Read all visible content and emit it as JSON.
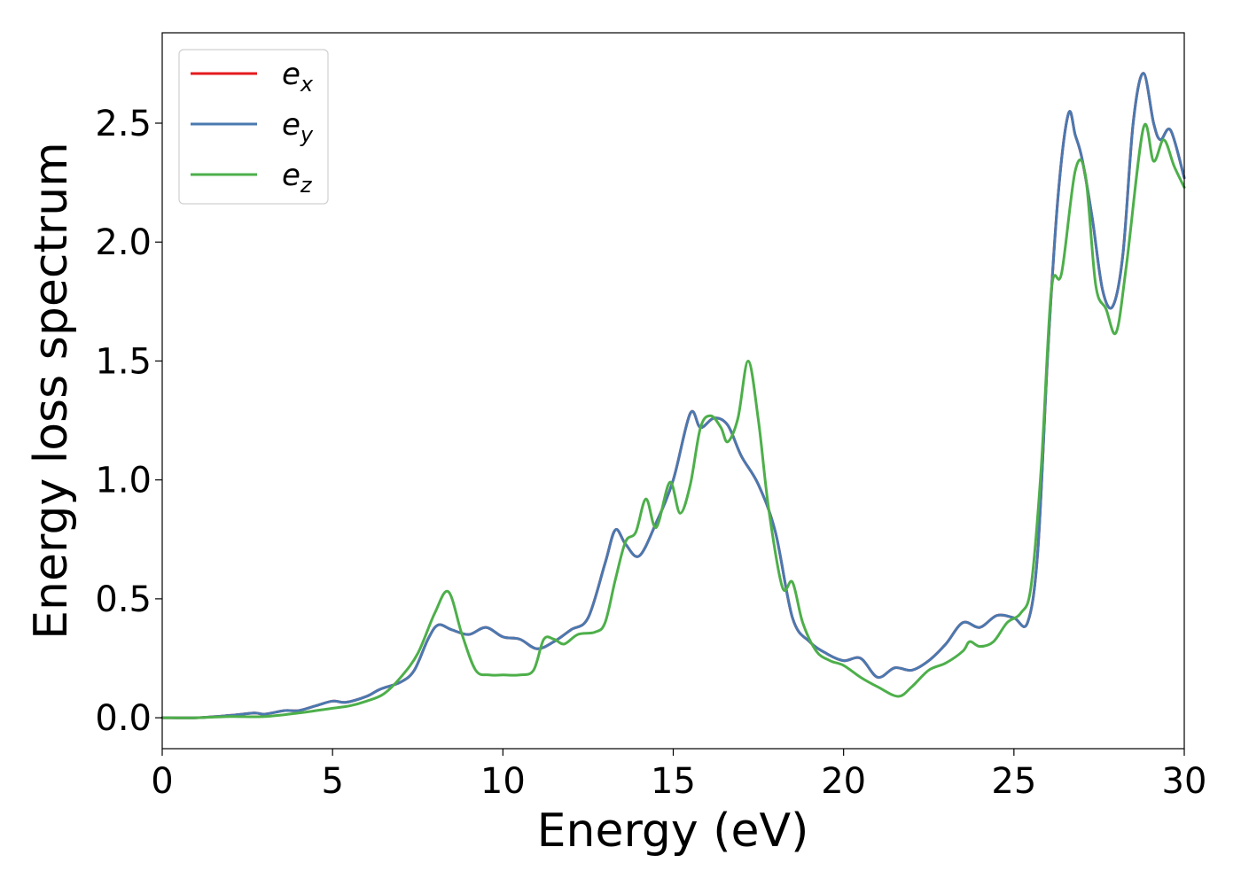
{
  "chart_data": {
    "type": "line",
    "title": "",
    "xlabel": "Energy (eV)",
    "ylabel": "Energy loss spectrum",
    "xlim": [
      0,
      30
    ],
    "ylim": [
      -0.13,
      2.88
    ],
    "xticks": [
      0,
      5,
      10,
      15,
      20,
      25,
      30
    ],
    "yticks": [
      0.0,
      0.5,
      1.0,
      1.5,
      2.0,
      2.5
    ],
    "xtick_labels": [
      "0",
      "5",
      "10",
      "15",
      "20",
      "25",
      "30"
    ],
    "ytick_labels": [
      "0.0",
      "0.5",
      "1.0",
      "1.5",
      "2.0",
      "2.5"
    ],
    "grid": false,
    "legend_position": "top-left",
    "series": [
      {
        "name": "e",
        "name_sub": "x",
        "color": "#e41a1c",
        "x": [
          0,
          1,
          2,
          2.7,
          3,
          3.6,
          4,
          4.5,
          5,
          5.4,
          6,
          6.4,
          7,
          7.4,
          7.8,
          8.1,
          8.5,
          9,
          9.5,
          10,
          10.5,
          11,
          11.5,
          12,
          12.5,
          13,
          13.3,
          13.6,
          14,
          14.5,
          15,
          15.5,
          15.8,
          16.2,
          16.6,
          17,
          17.5,
          18,
          18.5,
          19,
          19.5,
          20,
          20.5,
          21,
          21.5,
          22,
          22.5,
          23,
          23.5,
          24,
          24.5,
          25,
          25.4,
          25.7,
          26,
          26.3,
          26.6,
          26.8,
          27,
          27.3,
          27.6,
          27.9,
          28.2,
          28.5,
          28.8,
          29.1,
          29.3,
          29.6,
          30
        ],
        "y": [
          0.0,
          0.0,
          0.01,
          0.02,
          0.015,
          0.03,
          0.03,
          0.05,
          0.07,
          0.065,
          0.09,
          0.12,
          0.15,
          0.2,
          0.33,
          0.39,
          0.37,
          0.35,
          0.38,
          0.34,
          0.33,
          0.29,
          0.32,
          0.37,
          0.42,
          0.65,
          0.79,
          0.73,
          0.68,
          0.82,
          1.0,
          1.28,
          1.22,
          1.26,
          1.23,
          1.1,
          0.98,
          0.78,
          0.42,
          0.32,
          0.27,
          0.24,
          0.25,
          0.17,
          0.21,
          0.2,
          0.24,
          0.31,
          0.4,
          0.38,
          0.43,
          0.42,
          0.4,
          0.7,
          1.55,
          2.2,
          2.54,
          2.45,
          2.35,
          2.1,
          1.8,
          1.73,
          1.95,
          2.5,
          2.71,
          2.5,
          2.43,
          2.47,
          2.27
        ]
      },
      {
        "name": "e",
        "name_sub": "y",
        "color": "#4a79b0",
        "x": [
          0,
          1,
          2,
          2.7,
          3,
          3.6,
          4,
          4.5,
          5,
          5.4,
          6,
          6.4,
          7,
          7.4,
          7.8,
          8.1,
          8.5,
          9,
          9.5,
          10,
          10.5,
          11,
          11.5,
          12,
          12.5,
          13,
          13.3,
          13.6,
          14,
          14.5,
          15,
          15.5,
          15.8,
          16.2,
          16.6,
          17,
          17.5,
          18,
          18.5,
          19,
          19.5,
          20,
          20.5,
          21,
          21.5,
          22,
          22.5,
          23,
          23.5,
          24,
          24.5,
          25,
          25.4,
          25.7,
          26,
          26.3,
          26.6,
          26.8,
          27,
          27.3,
          27.6,
          27.9,
          28.2,
          28.5,
          28.8,
          29.1,
          29.3,
          29.6,
          30
        ],
        "y": [
          0.0,
          0.0,
          0.01,
          0.02,
          0.015,
          0.03,
          0.03,
          0.05,
          0.07,
          0.065,
          0.09,
          0.12,
          0.15,
          0.2,
          0.33,
          0.39,
          0.37,
          0.35,
          0.38,
          0.34,
          0.33,
          0.29,
          0.32,
          0.37,
          0.42,
          0.65,
          0.79,
          0.73,
          0.68,
          0.82,
          1.0,
          1.28,
          1.22,
          1.26,
          1.23,
          1.1,
          0.98,
          0.78,
          0.42,
          0.32,
          0.27,
          0.24,
          0.25,
          0.17,
          0.21,
          0.2,
          0.24,
          0.31,
          0.4,
          0.38,
          0.43,
          0.42,
          0.4,
          0.7,
          1.55,
          2.2,
          2.54,
          2.45,
          2.35,
          2.1,
          1.8,
          1.73,
          1.95,
          2.5,
          2.71,
          2.5,
          2.43,
          2.47,
          2.27
        ]
      },
      {
        "name": "e",
        "name_sub": "z",
        "color": "#4daf4a",
        "x": [
          0,
          1,
          2,
          3,
          4,
          5,
          5.5,
          6,
          6.5,
          7,
          7.5,
          8,
          8.4,
          8.8,
          9.2,
          9.6,
          10,
          10.5,
          10.9,
          11.2,
          11.5,
          11.8,
          12.2,
          12.7,
          13,
          13.3,
          13.6,
          13.9,
          14.2,
          14.5,
          14.9,
          15.2,
          15.5,
          15.8,
          16.1,
          16.4,
          16.6,
          16.9,
          17.2,
          17.5,
          17.8,
          18.2,
          18.5,
          18.8,
          19.2,
          19.6,
          20,
          20.5,
          21,
          21.6,
          22,
          22.5,
          23,
          23.5,
          23.7,
          24,
          24.4,
          24.8,
          25.2,
          25.5,
          25.8,
          26.1,
          26.4,
          26.8,
          27.1,
          27.4,
          27.7,
          28,
          28.3,
          28.8,
          29.1,
          29.4,
          29.7,
          30
        ],
        "y": [
          0.0,
          0.0,
          0.005,
          0.005,
          0.02,
          0.04,
          0.05,
          0.07,
          0.1,
          0.17,
          0.27,
          0.44,
          0.53,
          0.35,
          0.2,
          0.18,
          0.18,
          0.18,
          0.2,
          0.33,
          0.33,
          0.31,
          0.35,
          0.36,
          0.4,
          0.58,
          0.74,
          0.78,
          0.92,
          0.8,
          0.99,
          0.86,
          0.98,
          1.22,
          1.27,
          1.22,
          1.16,
          1.26,
          1.5,
          1.25,
          0.88,
          0.55,
          0.57,
          0.4,
          0.28,
          0.24,
          0.22,
          0.17,
          0.13,
          0.09,
          0.13,
          0.2,
          0.23,
          0.28,
          0.32,
          0.3,
          0.32,
          0.4,
          0.44,
          0.55,
          1.05,
          1.8,
          1.87,
          2.3,
          2.28,
          1.82,
          1.72,
          1.62,
          1.9,
          2.48,
          2.34,
          2.43,
          2.32,
          2.23
        ]
      }
    ]
  }
}
